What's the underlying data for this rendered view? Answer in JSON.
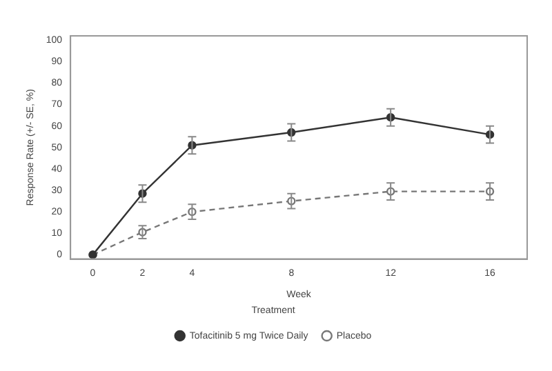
{
  "chart_data": {
    "type": "line",
    "xlabel": "Week",
    "ylabel": "Response Rate (+/- SE, %)",
    "legend_title": "Treatment",
    "x": [
      0,
      2,
      4,
      8,
      12,
      16
    ],
    "series": [
      {
        "name": "Tofacitinib 5 mg Twice Daily",
        "color": "#333333",
        "values": [
          0,
          28.5,
          51,
          57,
          64,
          56
        ],
        "errors": [
          null,
          4,
          4,
          4,
          4,
          4
        ],
        "line_style": "solid",
        "marker": "circle"
      },
      {
        "name": "Placebo",
        "color": "#777777",
        "values": [
          0,
          10.5,
          20,
          25,
          29.5,
          29.5
        ],
        "errors": [
          null,
          3,
          3.5,
          3.5,
          4,
          4
        ],
        "line_style": "dashed",
        "marker": "circle"
      }
    ],
    "xlim": [
      -0.9,
      17.5
    ],
    "xticks": [
      0,
      2,
      4,
      8,
      12,
      16
    ],
    "ylim": [
      -2,
      102
    ],
    "yticks": [
      0,
      10,
      20,
      30,
      40,
      50,
      60,
      70,
      80,
      90,
      100
    ],
    "grid": false,
    "legend": "bottom"
  }
}
